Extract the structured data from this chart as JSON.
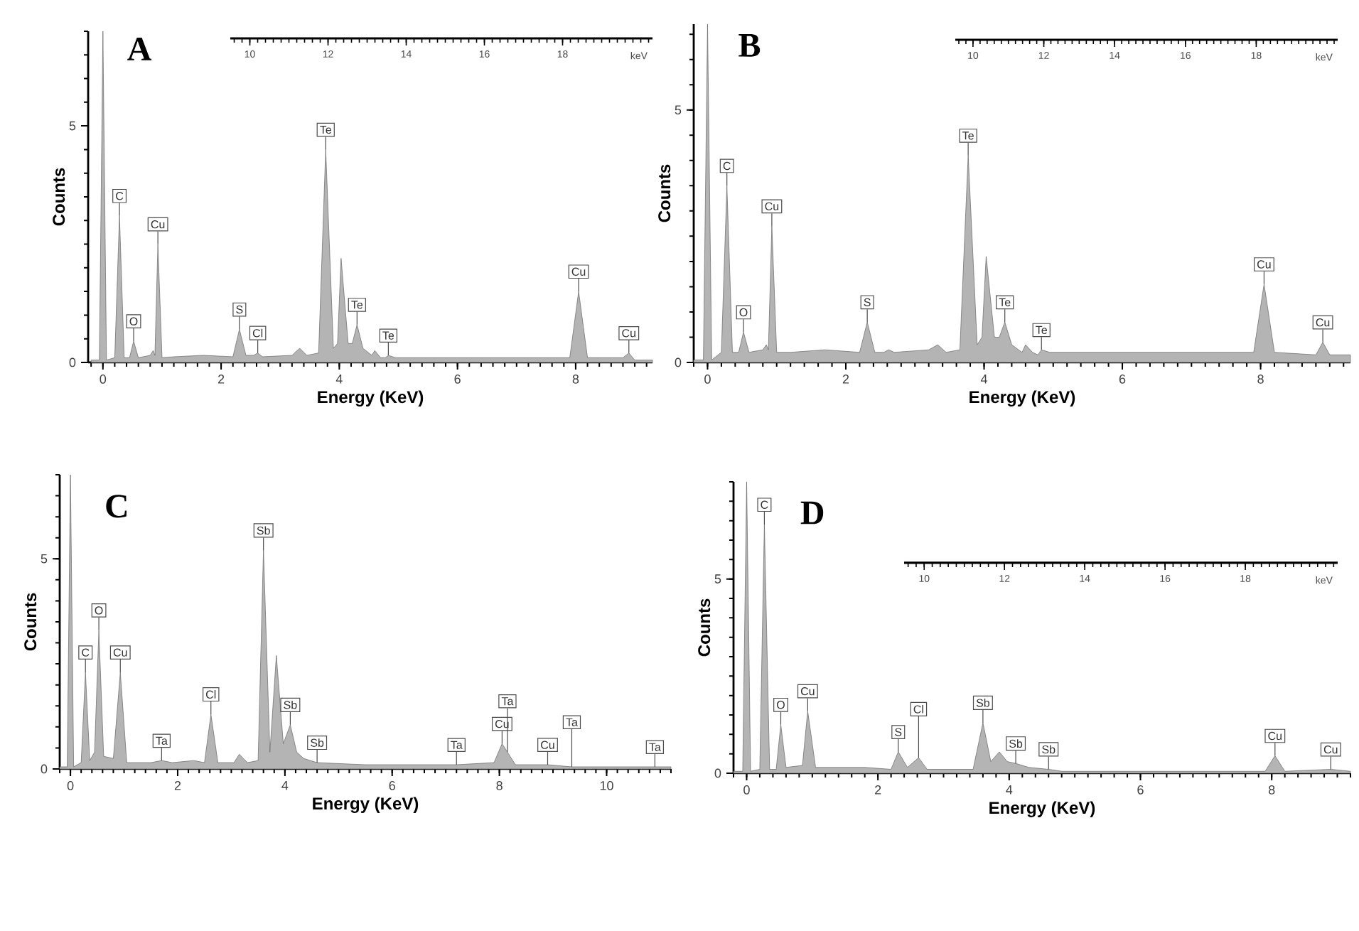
{
  "chart_data": [
    {
      "type": "area",
      "title": "A",
      "xlabel": "Energy (KeV)",
      "ylabel": "Counts",
      "color": "#b4b4b4",
      "x": [
        -0.2,
        -0.06,
        0,
        0.06,
        0.2,
        0.28,
        0.36,
        0.45,
        0.52,
        0.6,
        0.8,
        0.85,
        0.88,
        0.93,
        1.0,
        1.2,
        1.7,
        2.2,
        2.31,
        2.42,
        2.55,
        2.62,
        2.7,
        3.2,
        3.33,
        3.45,
        3.65,
        3.77,
        3.9,
        3.97,
        4.03,
        4.15,
        4.22,
        4.3,
        4.4,
        4.55,
        4.6,
        4.7,
        4.78,
        4.83,
        4.95,
        6.0,
        7.9,
        8.05,
        8.2,
        8.8,
        8.9,
        9.0,
        9.3
      ],
      "values": [
        0.05,
        0.05,
        7,
        0.05,
        0.1,
        3.1,
        0.1,
        0.1,
        0.45,
        0.1,
        0.15,
        0.25,
        0.15,
        2.5,
        0.1,
        0.12,
        0.15,
        0.12,
        0.7,
        0.15,
        0.15,
        0.2,
        0.12,
        0.15,
        0.3,
        0.15,
        0.2,
        4.5,
        0.3,
        0.4,
        2.2,
        0.4,
        0.4,
        0.8,
        0.3,
        0.15,
        0.25,
        0.1,
        0.1,
        0.15,
        0.1,
        0.1,
        0.1,
        1.5,
        0.1,
        0.1,
        0.2,
        0.05,
        0.05
      ],
      "xlim": [
        -0.25,
        9.3
      ],
      "ylim": [
        0,
        7
      ],
      "xticks": [
        0,
        2,
        4,
        6,
        8
      ],
      "yticks": [
        0,
        5
      ],
      "x2lim": [
        9.5,
        20.3
      ],
      "x2ticks": [
        10,
        12,
        14,
        16,
        18
      ],
      "x2label": "keV",
      "annotations": [
        {
          "text": "C",
          "x": 0.28,
          "y": 3.1
        },
        {
          "text": "O",
          "x": 0.52,
          "y": 0.45
        },
        {
          "text": "Cu",
          "x": 0.93,
          "y": 2.5
        },
        {
          "text": "S",
          "x": 2.31,
          "y": 0.7
        },
        {
          "text": "Cl",
          "x": 2.62,
          "y": 0.2
        },
        {
          "text": "Te",
          "x": 3.77,
          "y": 4.5
        },
        {
          "text": "Te",
          "x": 4.3,
          "y": 0.8
        },
        {
          "text": "Te",
          "x": 4.83,
          "y": 0.15
        },
        {
          "text": "Cu",
          "x": 8.05,
          "y": 1.5
        },
        {
          "text": "Cu",
          "x": 8.9,
          "y": 0.2
        }
      ]
    },
    {
      "type": "area",
      "title": "B",
      "xlabel": "Energy (KeV)",
      "ylabel": "Counts",
      "color": "#b4b4b4",
      "x": [
        -0.2,
        -0.06,
        0,
        0.06,
        0.2,
        0.28,
        0.36,
        0.45,
        0.52,
        0.6,
        0.8,
        0.85,
        0.88,
        0.93,
        1.0,
        1.2,
        1.7,
        2.2,
        2.31,
        2.42,
        2.55,
        2.62,
        2.7,
        3.2,
        3.33,
        3.45,
        3.65,
        3.77,
        3.9,
        3.97,
        4.03,
        4.15,
        4.22,
        4.3,
        4.4,
        4.55,
        4.6,
        4.7,
        4.78,
        4.83,
        4.95,
        6.0,
        7.9,
        8.05,
        8.2,
        8.8,
        8.9,
        9.0,
        9.3
      ],
      "values": [
        0.05,
        0.05,
        6.7,
        0.05,
        0.2,
        3.5,
        0.2,
        0.2,
        0.6,
        0.2,
        0.25,
        0.35,
        0.25,
        2.7,
        0.2,
        0.2,
        0.25,
        0.2,
        0.8,
        0.2,
        0.2,
        0.25,
        0.2,
        0.25,
        0.35,
        0.2,
        0.25,
        4.1,
        0.35,
        0.5,
        2.1,
        0.5,
        0.5,
        0.8,
        0.35,
        0.2,
        0.35,
        0.2,
        0.15,
        0.25,
        0.2,
        0.2,
        0.2,
        1.55,
        0.2,
        0.15,
        0.4,
        0.15,
        0.15
      ],
      "xlim": [
        -0.2,
        9.3
      ],
      "ylim": [
        0,
        6.7
      ],
      "xticks": [
        0,
        2,
        4,
        6,
        8
      ],
      "yticks": [
        0,
        5
      ],
      "x2lim": [
        9.5,
        20.3
      ],
      "x2ticks": [
        10,
        12,
        14,
        16,
        18
      ],
      "x2label": "keV",
      "annotations": [
        {
          "text": "C",
          "x": 0.28,
          "y": 3.5
        },
        {
          "text": "O",
          "x": 0.52,
          "y": 0.6
        },
        {
          "text": "Cu",
          "x": 0.93,
          "y": 2.7
        },
        {
          "text": "S",
          "x": 2.31,
          "y": 0.8
        },
        {
          "text": "Te",
          "x": 3.77,
          "y": 4.1
        },
        {
          "text": "Te",
          "x": 4.3,
          "y": 0.8
        },
        {
          "text": "Te",
          "x": 4.83,
          "y": 0.25
        },
        {
          "text": "Cu",
          "x": 8.05,
          "y": 1.55
        },
        {
          "text": "Cu",
          "x": 8.9,
          "y": 0.4
        }
      ]
    },
    {
      "type": "area",
      "title": "C",
      "xlabel": "Energy (KeV)",
      "ylabel": "Counts",
      "color": "#b4b4b4",
      "x": [
        -0.2,
        -0.06,
        0,
        0.06,
        0.2,
        0.28,
        0.36,
        0.45,
        0.53,
        0.62,
        0.8,
        0.93,
        1.05,
        1.5,
        1.7,
        1.9,
        2.3,
        2.5,
        2.62,
        2.75,
        3.05,
        3.15,
        3.3,
        3.5,
        3.6,
        3.72,
        3.84,
        3.97,
        4.1,
        4.22,
        4.35,
        4.6,
        5.5,
        7.2,
        7.9,
        8.05,
        8.15,
        8.3,
        8.9,
        9.35,
        10.9,
        11.2
      ],
      "values": [
        0.05,
        0.05,
        7,
        0.05,
        0.15,
        2.3,
        0.2,
        0.4,
        3.3,
        0.3,
        0.25,
        2.3,
        0.15,
        0.15,
        0.2,
        0.15,
        0.2,
        0.15,
        1.3,
        0.15,
        0.15,
        0.35,
        0.15,
        0.2,
        5.2,
        0.4,
        2.7,
        0.6,
        1.05,
        0.4,
        0.25,
        0.15,
        0.1,
        0.1,
        0.15,
        0.6,
        0.4,
        0.1,
        0.1,
        0.05,
        0.05,
        0.05
      ],
      "xlim": [
        -0.2,
        11.2
      ],
      "ylim": [
        0,
        7
      ],
      "xticks": [
        0,
        2,
        4,
        6,
        8,
        10
      ],
      "yticks": [
        0,
        5
      ],
      "annotations": [
        {
          "text": "C",
          "x": 0.28,
          "y": 2.3
        },
        {
          "text": "O",
          "x": 0.53,
          "y": 3.3
        },
        {
          "text": "Cu",
          "x": 0.93,
          "y": 2.3
        },
        {
          "text": "Ta",
          "x": 1.7,
          "y": 0.2
        },
        {
          "text": "Cl",
          "x": 2.62,
          "y": 1.3
        },
        {
          "text": "Sb",
          "x": 3.6,
          "y": 5.2
        },
        {
          "text": "Sb",
          "x": 4.1,
          "y": 1.05
        },
        {
          "text": "Sb",
          "x": 4.6,
          "y": 0.15
        },
        {
          "text": "Ta",
          "x": 7.2,
          "y": 0.1
        },
        {
          "text": "Cu",
          "x": 8.05,
          "y": 0.6
        },
        {
          "text": "Ta",
          "x": 8.15,
          "y": 0.4
        },
        {
          "text": "Cu",
          "x": 8.9,
          "y": 0.1
        },
        {
          "text": "Ta",
          "x": 9.35,
          "y": 0.05
        },
        {
          "text": "Ta",
          "x": 10.9,
          "y": 0.05
        }
      ]
    },
    {
      "type": "area",
      "title": "D",
      "xlabel": "Energy (KeV)",
      "ylabel": "Counts",
      "color": "#b4b4b4",
      "x": [
        -0.2,
        -0.06,
        0,
        0.06,
        0.2,
        0.27,
        0.35,
        0.45,
        0.52,
        0.6,
        0.85,
        0.93,
        1.05,
        1.8,
        2.2,
        2.31,
        2.45,
        2.62,
        2.75,
        3.45,
        3.6,
        3.72,
        3.85,
        3.97,
        4.1,
        4.3,
        4.6,
        4.8,
        7.9,
        8.05,
        8.2,
        8.9,
        9.2
      ],
      "values": [
        0.05,
        0.05,
        7.5,
        0.05,
        0.1,
        6.4,
        0.1,
        0.1,
        1.25,
        0.15,
        0.2,
        1.6,
        0.15,
        0.15,
        0.1,
        0.55,
        0.15,
        0.4,
        0.1,
        0.1,
        1.3,
        0.3,
        0.55,
        0.3,
        0.25,
        0.15,
        0.1,
        0.05,
        0.05,
        0.45,
        0.05,
        0.1,
        0.05
      ],
      "xlim": [
        -0.2,
        9.2
      ],
      "ylim": [
        0,
        7.5
      ],
      "xticks": [
        0,
        2,
        4,
        6,
        8
      ],
      "yticks": [
        0,
        5
      ],
      "x2lim": [
        9.5,
        20.3
      ],
      "x2ticks": [
        10,
        12,
        14,
        16,
        18
      ],
      "x2label": "keV",
      "annotations": [
        {
          "text": "C",
          "x": 0.27,
          "y": 6.4
        },
        {
          "text": "O",
          "x": 0.52,
          "y": 1.25
        },
        {
          "text": "Cu",
          "x": 0.93,
          "y": 1.6
        },
        {
          "text": "S",
          "x": 2.31,
          "y": 0.55
        },
        {
          "text": "Cl",
          "x": 2.62,
          "y": 0.4
        },
        {
          "text": "Sb",
          "x": 3.6,
          "y": 1.3
        },
        {
          "text": "Sb",
          "x": 4.1,
          "y": 0.25
        },
        {
          "text": "Sb",
          "x": 4.6,
          "y": 0.1
        },
        {
          "text": "Cu",
          "x": 8.05,
          "y": 0.45
        },
        {
          "text": "Cu",
          "x": 8.9,
          "y": 0.1
        }
      ]
    }
  ]
}
